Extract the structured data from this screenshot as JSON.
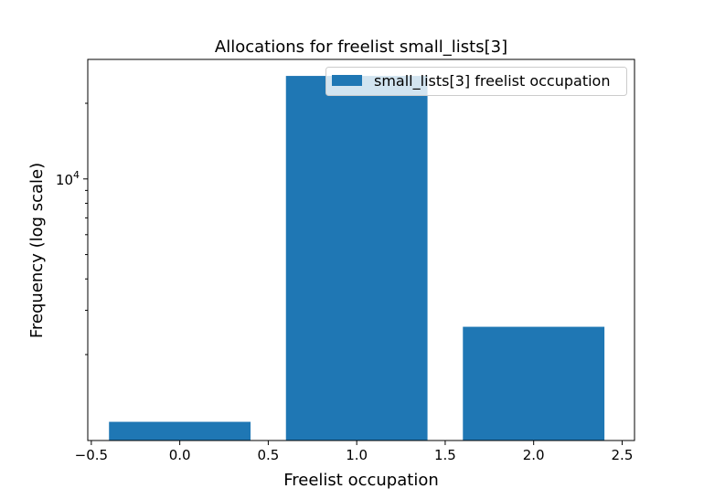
{
  "chart_data": {
    "type": "bar",
    "title": "Allocations for freelist small_lists[3]",
    "xlabel": "Freelist occupation",
    "ylabel": "Frequency (log scale)",
    "yscale": "log",
    "x": [
      0,
      1,
      2
    ],
    "values": [
      1080,
      25700,
      2580
    ],
    "bar_width": 0.8,
    "xlim": [
      -0.52,
      2.57
    ],
    "ylim": [
      910,
      29900
    ],
    "xticks": [
      -0.5,
      0.0,
      0.5,
      1.0,
      1.5,
      2.0,
      2.5
    ],
    "xtick_labels": [
      "−0.5",
      "0.0",
      "0.5",
      "1.0",
      "1.5",
      "2.0",
      "2.5"
    ],
    "yticks_major": [
      10000
    ],
    "ytick_major_labels": [
      {
        "base": "10",
        "exp": "4"
      }
    ],
    "yticks_minor": [
      2000,
      3000,
      4000,
      5000,
      6000,
      7000,
      8000,
      9000,
      20000
    ],
    "legend": {
      "label": "small_lists[3] freelist occupation",
      "placement": "top-right"
    },
    "grid": false,
    "color": "#1f77b4"
  }
}
